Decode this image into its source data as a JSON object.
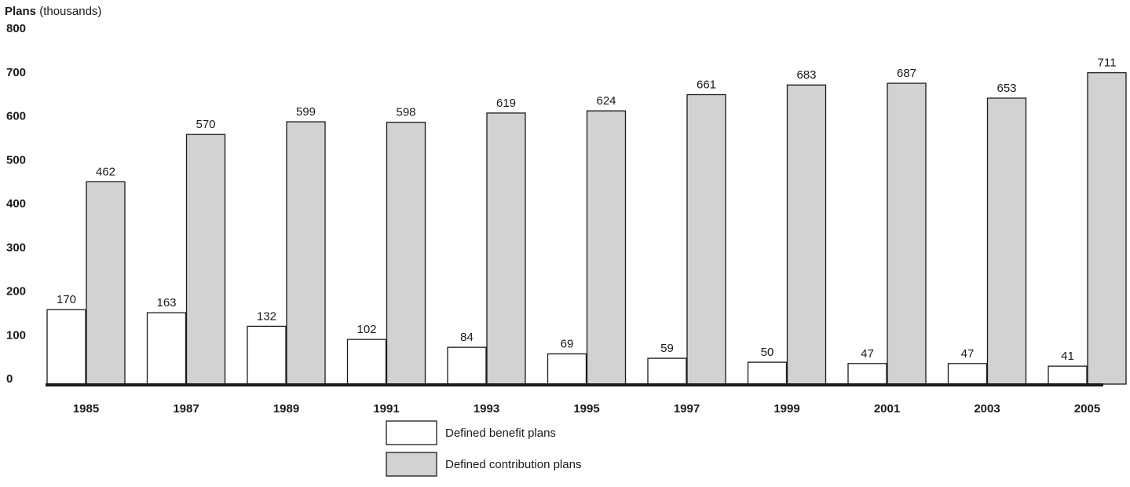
{
  "chart_data": {
    "type": "bar",
    "ylabel_bold": "Plans",
    "ylabel_unit": "(thousands)",
    "categories": [
      "1985",
      "1987",
      "1989",
      "1991",
      "1993",
      "1995",
      "1997",
      "1999",
      "2001",
      "2003",
      "2005"
    ],
    "series": [
      {
        "name": "Defined benefit plans",
        "values": [
          170,
          163,
          132,
          102,
          84,
          69,
          59,
          50,
          47,
          47,
          41
        ],
        "color": "#ffffff"
      },
      {
        "name": "Defined contribution plans",
        "values": [
          462,
          570,
          599,
          598,
          619,
          624,
          661,
          683,
          687,
          653,
          711
        ],
        "color": "#d1d2d4"
      }
    ],
    "ylim": [
      0,
      800
    ],
    "yticks": [
      "0",
      "100",
      "200",
      "300",
      "400",
      "500",
      "600",
      "700",
      "800"
    ],
    "grid": false,
    "legend_position": "bottom-center",
    "data_labels": true
  }
}
